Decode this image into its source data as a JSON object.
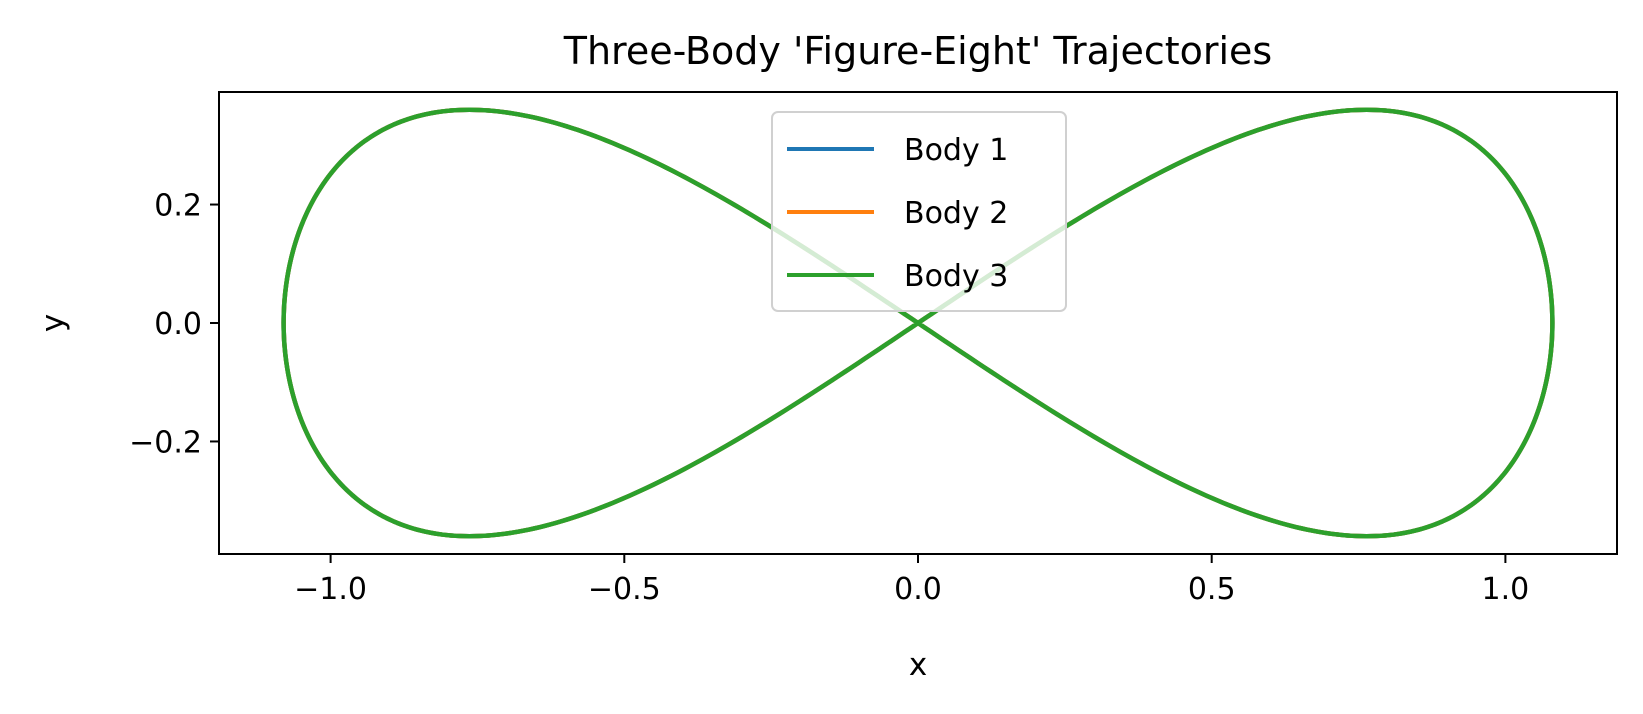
{
  "chart_data": {
    "type": "line",
    "title": "Three-Body 'Figure-Eight' Trajectories",
    "xlabel": "x",
    "ylabel": "y",
    "xlim": [
      -1.19,
      1.19
    ],
    "ylim": [
      -0.39,
      0.39
    ],
    "xticks": [
      -1.0,
      -0.5,
      0.0,
      0.5,
      1.0
    ],
    "xtick_labels": [
      "−1.0",
      "−0.5",
      "0.0",
      "0.5",
      "1.0"
    ],
    "yticks": [
      -0.2,
      0.0,
      0.2
    ],
    "ytick_labels": [
      "−0.2",
      "0.0",
      "0.2"
    ],
    "grid": false,
    "legend_position": "upper-center",
    "curve_parameters": {
      "x_amplitude": 1.08,
      "y_amplitude": 0.36
    },
    "series": [
      {
        "name": "Body 1",
        "color": "#1f77b4",
        "phase": 0.0
      },
      {
        "name": "Body 2",
        "color": "#ff7f0e",
        "phase": 2.0944
      },
      {
        "name": "Body 3",
        "color": "#2ca02c",
        "phase": 4.1888
      }
    ]
  }
}
